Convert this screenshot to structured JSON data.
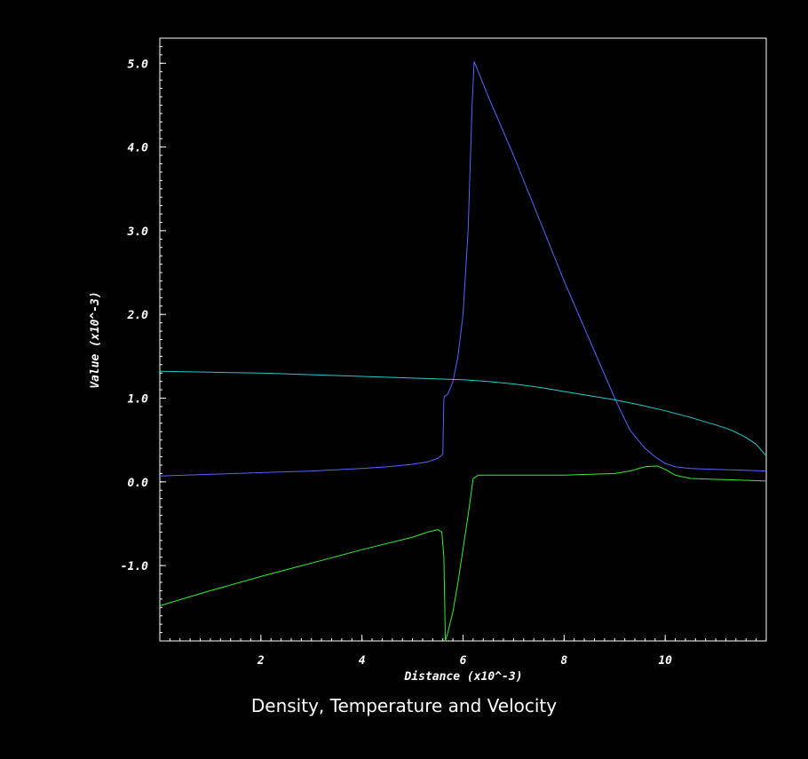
{
  "chart_data": {
    "type": "line",
    "title": "Density, Temperature and Velocity",
    "xlabel": "Distance (x10^-3)",
    "ylabel": "Value (x10^-3)",
    "xlim": [
      0,
      12
    ],
    "ylim": [
      -1.9,
      5.3
    ],
    "x_ticks": [
      2,
      4,
      6,
      8,
      10
    ],
    "x_tick_labels": [
      "2",
      "4",
      "6",
      "8",
      "10"
    ],
    "y_ticks": [
      -1.0,
      0.0,
      1.0,
      2.0,
      3.0,
      4.0,
      5.0
    ],
    "y_tick_labels": [
      "-1.0",
      "0.0",
      "1.0",
      "2.0",
      "3.0",
      "4.0",
      "5.0"
    ],
    "grid": false,
    "legend": false,
    "background": "#000000",
    "axis_color": "#ffffff",
    "series": [
      {
        "color": "#5566ff",
        "x": [
          0.0,
          1.0,
          2.0,
          3.0,
          4.0,
          4.5,
          5.0,
          5.3,
          5.5,
          5.6,
          5.62,
          5.63,
          5.7,
          5.8,
          5.9,
          6.0,
          6.1,
          6.18,
          6.22,
          6.3,
          6.5,
          7.0,
          7.5,
          8.0,
          8.5,
          9.0,
          9.3,
          9.6,
          9.8,
          10.0,
          10.2,
          10.5,
          11.0,
          11.5,
          12.0
        ],
        "y": [
          0.07,
          0.09,
          0.11,
          0.13,
          0.16,
          0.18,
          0.21,
          0.24,
          0.28,
          0.33,
          0.98,
          1.02,
          1.05,
          1.2,
          1.5,
          2.0,
          3.0,
          4.5,
          5.02,
          4.9,
          4.6,
          3.9,
          3.15,
          2.4,
          1.7,
          1.0,
          0.62,
          0.4,
          0.3,
          0.22,
          0.18,
          0.16,
          0.15,
          0.14,
          0.13
        ]
      },
      {
        "color": "#22cccc",
        "x": [
          0.0,
          1.0,
          2.0,
          3.0,
          4.0,
          5.0,
          6.0,
          6.5,
          7.0,
          7.5,
          8.0,
          8.5,
          9.0,
          9.5,
          10.0,
          10.5,
          11.0,
          11.3,
          11.6,
          11.8,
          12.0
        ],
        "y": [
          1.32,
          1.31,
          1.3,
          1.28,
          1.26,
          1.24,
          1.22,
          1.2,
          1.17,
          1.13,
          1.08,
          1.03,
          0.98,
          0.92,
          0.85,
          0.77,
          0.68,
          0.62,
          0.53,
          0.45,
          0.31
        ]
      },
      {
        "color": "#33ee33",
        "x": [
          0.0,
          1.0,
          2.0,
          3.0,
          4.0,
          5.0,
          5.3,
          5.5,
          5.58,
          5.62,
          5.65,
          5.7,
          5.8,
          5.9,
          6.0,
          6.1,
          6.2,
          6.3,
          7.0,
          8.0,
          9.0,
          9.3,
          9.6,
          9.85,
          10.0,
          10.2,
          10.5,
          11.0,
          11.5,
          12.0
        ],
        "y": [
          -1.48,
          -1.3,
          -1.13,
          -0.97,
          -0.81,
          -0.66,
          -0.6,
          -0.57,
          -0.6,
          -0.9,
          -1.9,
          -1.8,
          -1.55,
          -1.2,
          -0.8,
          -0.4,
          0.04,
          0.08,
          0.08,
          0.08,
          0.1,
          0.13,
          0.18,
          0.19,
          0.15,
          0.08,
          0.04,
          0.03,
          0.02,
          0.01
        ]
      }
    ]
  }
}
